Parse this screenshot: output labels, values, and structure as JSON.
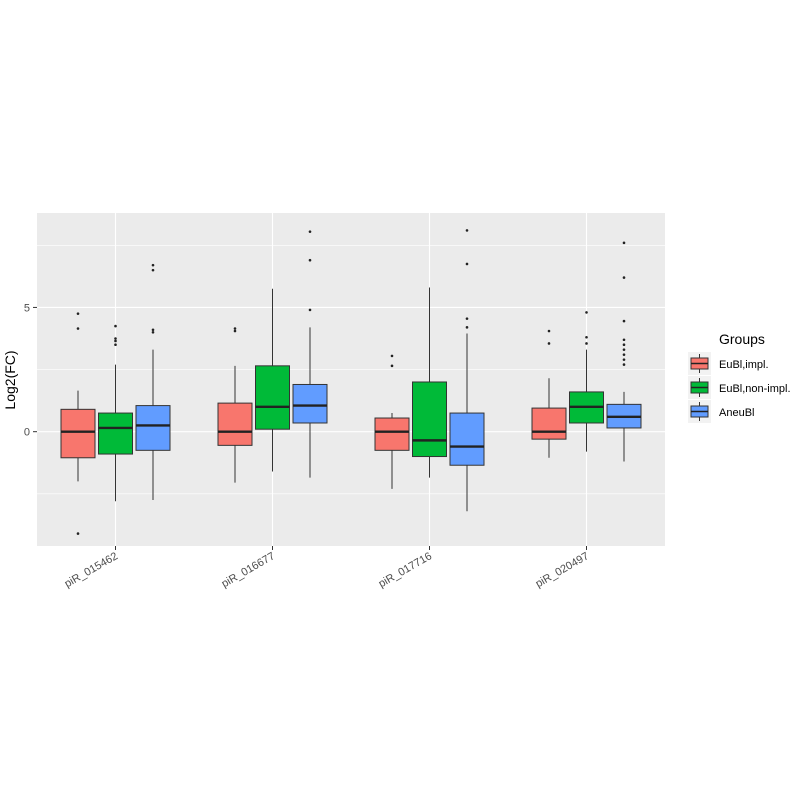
{
  "chart_data": {
    "type": "boxplot",
    "title": "",
    "xlabel": "",
    "ylabel": "Log2(FC)",
    "ylim": [
      -4.6,
      8.8
    ],
    "yticks": [
      0,
      5
    ],
    "grid": true,
    "legend_title": "Groups",
    "legend_position": "right",
    "categories": [
      "piR_015462",
      "piR_016677",
      "piR_017716",
      "piR_020497"
    ],
    "series": [
      {
        "name": "EuBl,impl.",
        "color": "#F8766D",
        "boxes": [
          {
            "min": -2.0,
            "q1": -1.05,
            "median": 0.0,
            "q3": 0.9,
            "max": 1.65,
            "outliers": [
              4.75,
              4.15,
              -4.1
            ]
          },
          {
            "min": -2.05,
            "q1": -0.55,
            "median": 0.0,
            "q3": 1.15,
            "max": 2.65,
            "outliers": [
              4.15,
              4.05
            ]
          },
          {
            "min": -2.3,
            "q1": -0.75,
            "median": 0.0,
            "q3": 0.55,
            "max": 0.75,
            "outliers": [
              3.05,
              2.65
            ]
          },
          {
            "min": -1.05,
            "q1": -0.3,
            "median": 0.0,
            "q3": 0.95,
            "max": 2.15,
            "outliers": [
              4.05,
              3.55
            ]
          }
        ]
      },
      {
        "name": "EuBl,non-impl.",
        "color": "#00BA38",
        "boxes": [
          {
            "min": -2.8,
            "q1": -0.9,
            "median": 0.15,
            "q3": 0.75,
            "max": 2.7,
            "outliers": [
              4.25,
              3.75,
              3.65,
              3.5
            ]
          },
          {
            "min": -1.6,
            "q1": 0.1,
            "median": 1.0,
            "q3": 2.65,
            "max": 5.75,
            "outliers": []
          },
          {
            "min": -1.85,
            "q1": -1.0,
            "median": -0.35,
            "q3": 2.0,
            "max": 5.8,
            "outliers": []
          },
          {
            "min": -0.8,
            "q1": 0.35,
            "median": 1.0,
            "q3": 1.6,
            "max": 3.3,
            "outliers": [
              4.8,
              3.8,
              3.55
            ]
          }
        ]
      },
      {
        "name": "AneuBl",
        "color": "#619CFF",
        "boxes": [
          {
            "min": -2.75,
            "q1": -0.75,
            "median": 0.25,
            "q3": 1.05,
            "max": 3.3,
            "outliers": [
              6.7,
              6.5,
              4.1,
              4.0
            ]
          },
          {
            "min": -1.85,
            "q1": 0.35,
            "median": 1.05,
            "q3": 1.9,
            "max": 4.2,
            "outliers": [
              8.05,
              6.9,
              4.9
            ]
          },
          {
            "min": -3.2,
            "q1": -1.35,
            "median": -0.6,
            "q3": 0.75,
            "max": 3.95,
            "outliers": [
              8.1,
              6.75,
              4.55,
              4.2
            ]
          },
          {
            "min": -1.2,
            "q1": 0.15,
            "median": 0.6,
            "q3": 1.1,
            "max": 1.6,
            "outliers": [
              7.6,
              6.2,
              4.45,
              3.7,
              3.5,
              3.3,
              3.1,
              2.9,
              2.7
            ]
          }
        ]
      }
    ]
  }
}
